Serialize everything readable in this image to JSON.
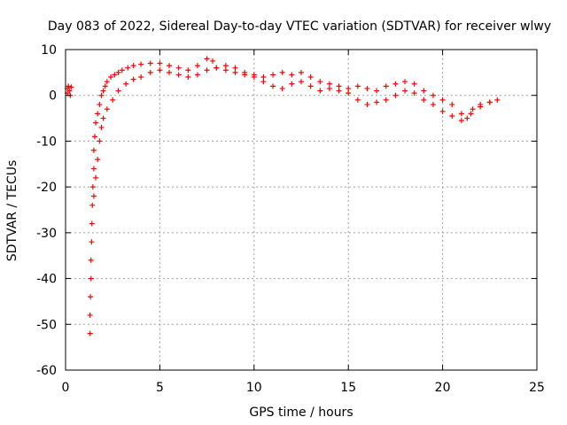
{
  "chart_data": {
    "type": "scatter",
    "title": "Day 083 of 2022, Sidereal Day-to-day VTEC variation (SDTVAR) for receiver wlwy",
    "xlabel": "GPS time / hours",
    "ylabel": "SDTVAR / TECUs",
    "xlim": [
      0,
      25
    ],
    "ylim": [
      -60,
      10
    ],
    "xticks": [
      0,
      5,
      10,
      15,
      20,
      25
    ],
    "yticks": [
      10,
      0,
      -10,
      -20,
      -30,
      -40,
      -50,
      -60
    ],
    "grid": true,
    "marker": "+",
    "color": "#ff0000",
    "series": [
      {
        "name": "SDTVAR",
        "x": [
          0.1,
          0.1,
          0.15,
          0.2,
          0.25,
          0.3
        ],
        "y": [
          1.5,
          0.5,
          2.0,
          1.0,
          0.0,
          1.8
        ]
      },
      {
        "name": "SDTVAR",
        "x": [
          1.3,
          1.3,
          1.32,
          1.35,
          1.35,
          1.38,
          1.4,
          1.42,
          1.45,
          1.5,
          1.5,
          1.55,
          1.6,
          1.7,
          1.8,
          1.9,
          2.0,
          2.1,
          2.2,
          2.4,
          2.6,
          2.8,
          3.0,
          3.3,
          3.6,
          4.0,
          4.5,
          5.0,
          5.5,
          6.0,
          6.5,
          7.0,
          7.5,
          7.8,
          8.0,
          8.5,
          9.0,
          9.5,
          10.0,
          10.5,
          11.0,
          11.5,
          12.0,
          12.5,
          13.0,
          13.5,
          14.0,
          14.5,
          15.0,
          15.5,
          16.0,
          16.5,
          17.0,
          17.5,
          18.0,
          18.5,
          19.0,
          19.5,
          20.0,
          20.5,
          21.0,
          21.3,
          21.6,
          22.0,
          22.5,
          22.9
        ],
        "y": [
          -52,
          -48,
          -44,
          -40,
          -36,
          -32,
          -28,
          -24,
          -20,
          -16,
          -12,
          -9,
          -6,
          -4,
          -2,
          0,
          1,
          2,
          3,
          4,
          4.5,
          5,
          5.5,
          6,
          6.5,
          6.8,
          7,
          7,
          6.5,
          6,
          5.5,
          6.5,
          8,
          7.5,
          6,
          6.5,
          6,
          5,
          4.5,
          4,
          4.5,
          5,
          4.5,
          5,
          4,
          3,
          2.5,
          2,
          1.5,
          2,
          1.5,
          1,
          2,
          2.5,
          3,
          2.5,
          1,
          0,
          -1,
          -2,
          -4,
          -5,
          -3,
          -2,
          -1.5,
          -1
        ]
      },
      {
        "name": "SDTVAR",
        "x": [
          1.5,
          1.6,
          1.7,
          1.8,
          1.9,
          2.0,
          2.2,
          2.5,
          2.8,
          3.2,
          3.6,
          4.0,
          4.5,
          5.0,
          5.5,
          6.0,
          6.5,
          7.0,
          7.5,
          8.0,
          8.5,
          9.0,
          9.5,
          10.0,
          10.5,
          11.0,
          11.5,
          12.0,
          12.5,
          13.0,
          13.5,
          14.0,
          14.5,
          15.0,
          15.5,
          16.0,
          16.5,
          17.0,
          17.5,
          18.0,
          18.5,
          19.0,
          19.5,
          20.0,
          20.5,
          21.0,
          21.5,
          22.0,
          22.5
        ],
        "y": [
          -22,
          -18,
          -14,
          -10,
          -7,
          -5,
          -3,
          -1,
          1,
          2.5,
          3.5,
          4,
          5,
          5.5,
          5,
          4.5,
          4,
          4.5,
          5.5,
          6,
          5.5,
          5,
          4.5,
          4,
          3,
          2,
          1.5,
          2.5,
          3,
          2,
          1,
          1.5,
          1,
          0.5,
          -1,
          -2,
          -1.5,
          -1,
          0,
          1,
          0.5,
          -1,
          -2,
          -3.5,
          -4.5,
          -5.5,
          -4,
          -2.5,
          -1.5
        ]
      }
    ]
  }
}
